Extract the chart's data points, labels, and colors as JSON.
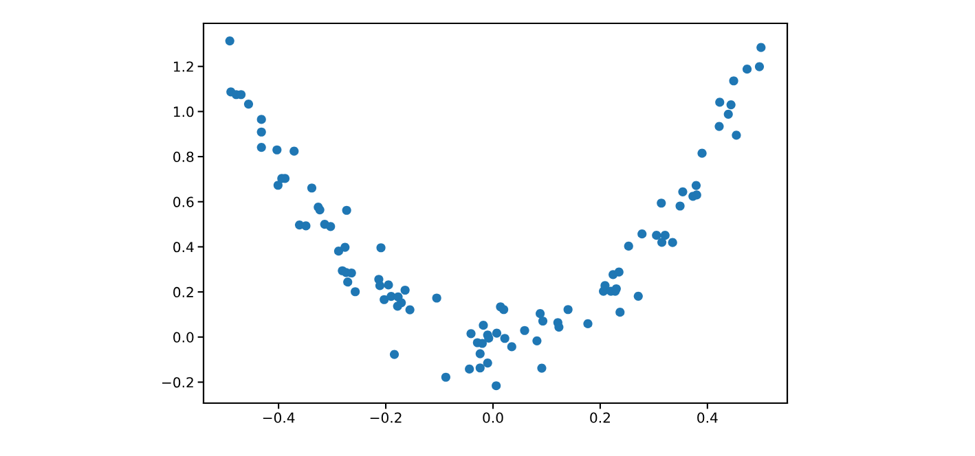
{
  "chart_data": {
    "type": "scatter",
    "marker": "circle",
    "xlim": [
      -0.54,
      0.549
    ],
    "ylim": [
      -0.293,
      1.391
    ],
    "xticks": [
      {
        "value": -0.4,
        "label": "−0.4"
      },
      {
        "value": -0.2,
        "label": "−0.2"
      },
      {
        "value": 0.0,
        "label": "0.0"
      },
      {
        "value": 0.2,
        "label": "0.2"
      },
      {
        "value": 0.4,
        "label": "0.4"
      }
    ],
    "yticks": [
      {
        "value": -0.2,
        "label": "−0.2"
      },
      {
        "value": 0.0,
        "label": "0.0"
      },
      {
        "value": 0.2,
        "label": "0.2"
      },
      {
        "value": 0.4,
        "label": "0.4"
      },
      {
        "value": 0.6,
        "label": "0.6"
      },
      {
        "value": 0.8,
        "label": "0.8"
      },
      {
        "value": 1.0,
        "label": "1.0"
      },
      {
        "value": 1.2,
        "label": "1.2"
      }
    ],
    "series": [
      {
        "color": "#1f77b4",
        "x": [
          -0.491,
          -0.489,
          -0.479,
          -0.47,
          -0.456,
          -0.432,
          -0.432,
          -0.432,
          -0.403,
          -0.371,
          -0.401,
          -0.394,
          -0.388,
          -0.338,
          -0.326,
          -0.323,
          -0.273,
          -0.361,
          -0.349,
          -0.314,
          -0.303,
          -0.288,
          -0.276,
          -0.281,
          -0.274,
          -0.264,
          -0.271,
          -0.257,
          -0.209,
          -0.213,
          -0.211,
          -0.195,
          -0.164,
          -0.203,
          -0.19,
          -0.177,
          -0.171,
          -0.178,
          -0.155,
          -0.105,
          -0.184,
          -0.088,
          -0.041,
          -0.018,
          -0.029,
          -0.02,
          -0.01,
          -0.008,
          0.007,
          -0.024,
          -0.01,
          -0.044,
          -0.024,
          0.006,
          0.014,
          0.02,
          0.022,
          0.035,
          0.059,
          0.082,
          0.088,
          0.093,
          0.091,
          0.121,
          0.123,
          0.14,
          0.177,
          0.206,
          0.209,
          0.22,
          0.228,
          0.23,
          0.224,
          0.235,
          0.237,
          0.271,
          0.253,
          0.278,
          0.305,
          0.321,
          0.315,
          0.335,
          0.314,
          0.349,
          0.354,
          0.373,
          0.38,
          0.379,
          0.39,
          0.422,
          0.454,
          0.439,
          0.444,
          0.423,
          0.449,
          0.474,
          0.497,
          0.5
        ],
        "values": [
          1.313,
          1.087,
          1.075,
          1.075,
          1.033,
          0.965,
          0.909,
          0.841,
          0.83,
          0.824,
          0.673,
          0.703,
          0.703,
          0.661,
          0.576,
          0.564,
          0.562,
          0.497,
          0.493,
          0.5,
          0.49,
          0.381,
          0.398,
          0.294,
          0.286,
          0.284,
          0.244,
          0.201,
          0.396,
          0.256,
          0.228,
          0.231,
          0.208,
          0.166,
          0.18,
          0.178,
          0.152,
          0.137,
          0.121,
          0.173,
          -0.077,
          -0.178,
          0.015,
          0.052,
          -0.025,
          -0.028,
          0.009,
          -0.005,
          0.017,
          -0.074,
          -0.115,
          -0.142,
          -0.137,
          -0.216,
          0.134,
          0.122,
          -0.006,
          -0.043,
          0.029,
          -0.017,
          0.104,
          0.071,
          -0.138,
          0.064,
          0.044,
          0.122,
          0.059,
          0.203,
          0.228,
          0.203,
          0.203,
          0.214,
          0.277,
          0.288,
          0.11,
          0.181,
          0.403,
          0.457,
          0.451,
          0.451,
          0.42,
          0.419,
          0.594,
          0.581,
          0.644,
          0.624,
          0.63,
          0.672,
          0.815,
          0.934,
          0.895,
          0.988,
          1.03,
          1.041,
          1.136,
          1.188,
          1.199,
          1.284
        ]
      }
    ]
  }
}
